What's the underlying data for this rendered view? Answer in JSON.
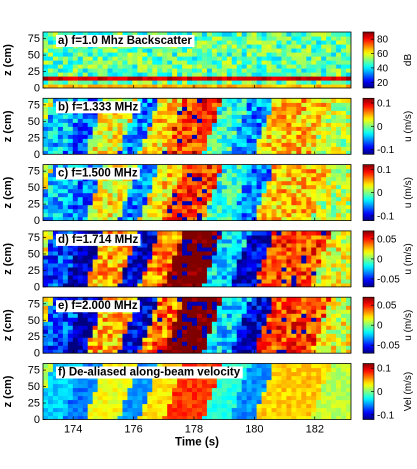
{
  "chart_data": {
    "type": "heatmap",
    "colormap": "jet",
    "xlabel": "Time (s)",
    "xlim": [
      173,
      183.2
    ],
    "xticks": [
      174,
      176,
      178,
      180,
      182
    ],
    "panels": [
      {
        "id": "a",
        "label": "a) f=1.0 Mhz Backscatter",
        "ylabel": "z (cm)",
        "ylim": [
          0,
          85
        ],
        "yticks": [
          0,
          25,
          50,
          75
        ],
        "colorbar": {
          "label": "dB",
          "range": [
            12,
            90
          ],
          "ticks": [
            20,
            40,
            60,
            80
          ]
        },
        "variable": "backscatter",
        "features": [
          {
            "kind": "band",
            "z_center": 14,
            "z_width": 8,
            "value": 88
          },
          {
            "kind": "band",
            "z_center": 4,
            "z_width": 4,
            "value": 70
          }
        ]
      },
      {
        "id": "b",
        "label": "b) f=1.333 MHz",
        "ylabel": "z (cm)",
        "ylim": [
          0,
          85
        ],
        "yticks": [
          0,
          25,
          50,
          75
        ],
        "colorbar": {
          "label": "u (m/s)",
          "range": [
            -0.12,
            0.12
          ],
          "ticks": [
            -0.1,
            0,
            0.1
          ]
        },
        "variable": "velocity"
      },
      {
        "id": "c",
        "label": "c) f=1.500 MHz",
        "ylabel": "z (cm)",
        "ylim": [
          0,
          85
        ],
        "yticks": [
          0,
          25,
          50,
          75
        ],
        "colorbar": {
          "label": "u (m/s)",
          "range": [
            -0.12,
            0.12
          ],
          "ticks": [
            -0.1,
            0,
            0.1
          ]
        },
        "variable": "velocity"
      },
      {
        "id": "d",
        "label": "d) f=1.714 MHz",
        "ylabel": "z (cm)",
        "ylim": [
          0,
          85
        ],
        "yticks": [
          0,
          25,
          50,
          75
        ],
        "colorbar": {
          "label": "u (m/s)",
          "range": [
            -0.07,
            0.07
          ],
          "ticks": [
            -0.05,
            0,
            0.05
          ]
        },
        "variable": "velocity"
      },
      {
        "id": "e",
        "label": "e) f=2.000 MHz",
        "ylabel": "z (cm)",
        "ylim": [
          0,
          85
        ],
        "yticks": [
          0,
          25,
          50,
          75
        ],
        "colorbar": {
          "label": "u (m/s)",
          "range": [
            -0.07,
            0.07
          ],
          "ticks": [
            -0.05,
            0,
            0.05
          ]
        },
        "variable": "velocity"
      },
      {
        "id": "f",
        "label": "f) De-aliased along-beam velocity",
        "ylabel": "z (cm)",
        "ylim": [
          0,
          85
        ],
        "yticks": [
          0,
          25,
          50,
          75
        ],
        "colorbar": {
          "label": "Vel (m/s)",
          "range": [
            -0.12,
            0.12
          ],
          "ticks": [
            -0.1,
            0,
            0.1
          ]
        },
        "variable": "velocity",
        "smooth": true
      }
    ],
    "velocity_pattern": [
      {
        "t_start": 173.0,
        "t_end": 174.0,
        "value": -0.06
      },
      {
        "t_start": 174.0,
        "t_end": 174.7,
        "value": -0.09
      },
      {
        "t_start": 174.7,
        "t_end": 175.8,
        "value": 0.04
      },
      {
        "t_start": 175.8,
        "t_end": 176.5,
        "value": -0.08
      },
      {
        "t_start": 176.5,
        "t_end": 177.3,
        "value": 0.05
      },
      {
        "t_start": 177.3,
        "t_end": 178.6,
        "value": 0.11
      },
      {
        "t_start": 178.6,
        "t_end": 179.5,
        "value": -0.03
      },
      {
        "t_start": 179.5,
        "t_end": 180.3,
        "value": -0.08
      },
      {
        "t_start": 180.3,
        "t_end": 182.2,
        "value": 0.06
      },
      {
        "t_start": 182.2,
        "t_end": 183.2,
        "value": 0.02
      }
    ]
  }
}
